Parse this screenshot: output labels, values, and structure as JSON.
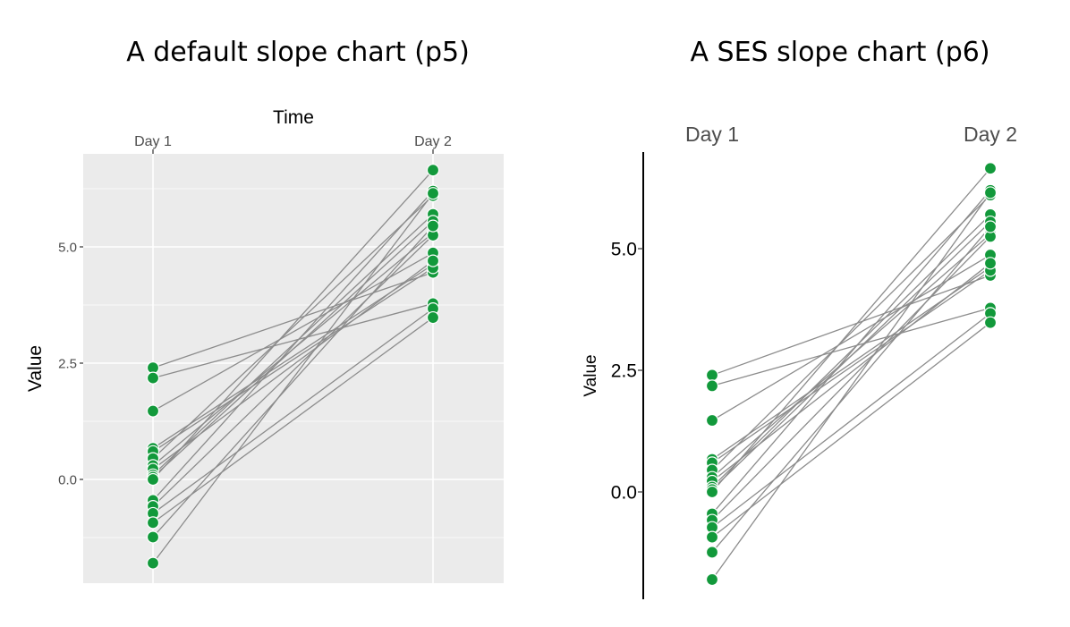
{
  "chart_data": [
    {
      "type": "line",
      "title": "A default slope chart (p5)",
      "xlabel": "Time",
      "ylabel": "Value",
      "categories": [
        "Day 1",
        "Day 2"
      ],
      "ylim": [
        -2.2,
        7.0
      ],
      "yticks": [
        0.0,
        2.5,
        5.0
      ],
      "ytick_labels": [
        "0.0",
        "2.5",
        "5.0"
      ],
      "x_axis_position": "top",
      "grid": true,
      "background": "#ebebeb",
      "series": [
        {
          "values": [
            2.4,
            4.45
          ]
        },
        {
          "values": [
            2.18,
            3.78
          ]
        },
        {
          "values": [
            1.47,
            4.87
          ]
        },
        {
          "values": [
            0.67,
            4.62
          ]
        },
        {
          "values": [
            0.6,
            4.55
          ]
        },
        {
          "values": [
            0.45,
            6.1
          ]
        },
        {
          "values": [
            0.3,
            5.3
          ]
        },
        {
          "values": [
            0.22,
            4.7
          ]
        },
        {
          "values": [
            0.1,
            5.7
          ]
        },
        {
          "values": [
            0.05,
            5.55
          ]
        },
        {
          "values": [
            0.0,
            6.65
          ]
        },
        {
          "values": [
            -0.45,
            6.2
          ]
        },
        {
          "values": [
            -0.58,
            5.25
          ]
        },
        {
          "values": [
            -0.73,
            3.67
          ]
        },
        {
          "values": [
            -0.93,
            3.48
          ]
        },
        {
          "values": [
            -1.24,
            5.45
          ]
        },
        {
          "values": [
            -1.8,
            6.15
          ]
        }
      ]
    },
    {
      "type": "line",
      "title": "A SES slope chart (p6)",
      "xlabel": "",
      "ylabel": "Value",
      "categories": [
        "Day 1",
        "Day 2"
      ],
      "ylim": [
        -2.2,
        7.0
      ],
      "yticks": [
        0.0,
        2.5,
        5.0
      ],
      "ytick_labels": [
        "0.0",
        "2.5",
        "5.0"
      ],
      "x_axis_position": "top",
      "grid": false,
      "background": "#ffffff",
      "series": [
        {
          "values": [
            2.4,
            4.45
          ]
        },
        {
          "values": [
            2.18,
            3.78
          ]
        },
        {
          "values": [
            1.47,
            4.87
          ]
        },
        {
          "values": [
            0.67,
            4.62
          ]
        },
        {
          "values": [
            0.6,
            4.55
          ]
        },
        {
          "values": [
            0.45,
            6.1
          ]
        },
        {
          "values": [
            0.3,
            5.3
          ]
        },
        {
          "values": [
            0.22,
            4.7
          ]
        },
        {
          "values": [
            0.1,
            5.7
          ]
        },
        {
          "values": [
            0.05,
            5.55
          ]
        },
        {
          "values": [
            0.0,
            6.65
          ]
        },
        {
          "values": [
            -0.45,
            6.2
          ]
        },
        {
          "values": [
            -0.58,
            5.25
          ]
        },
        {
          "values": [
            -0.73,
            3.67
          ]
        },
        {
          "values": [
            -0.93,
            3.48
          ]
        },
        {
          "values": [
            -1.24,
            5.45
          ]
        },
        {
          "values": [
            -1.8,
            6.15
          ]
        }
      ]
    }
  ],
  "colors": {
    "point": "#12993b",
    "line": "#8c8c8c",
    "panel_bg": "#ebebeb",
    "grid": "#ffffff"
  }
}
